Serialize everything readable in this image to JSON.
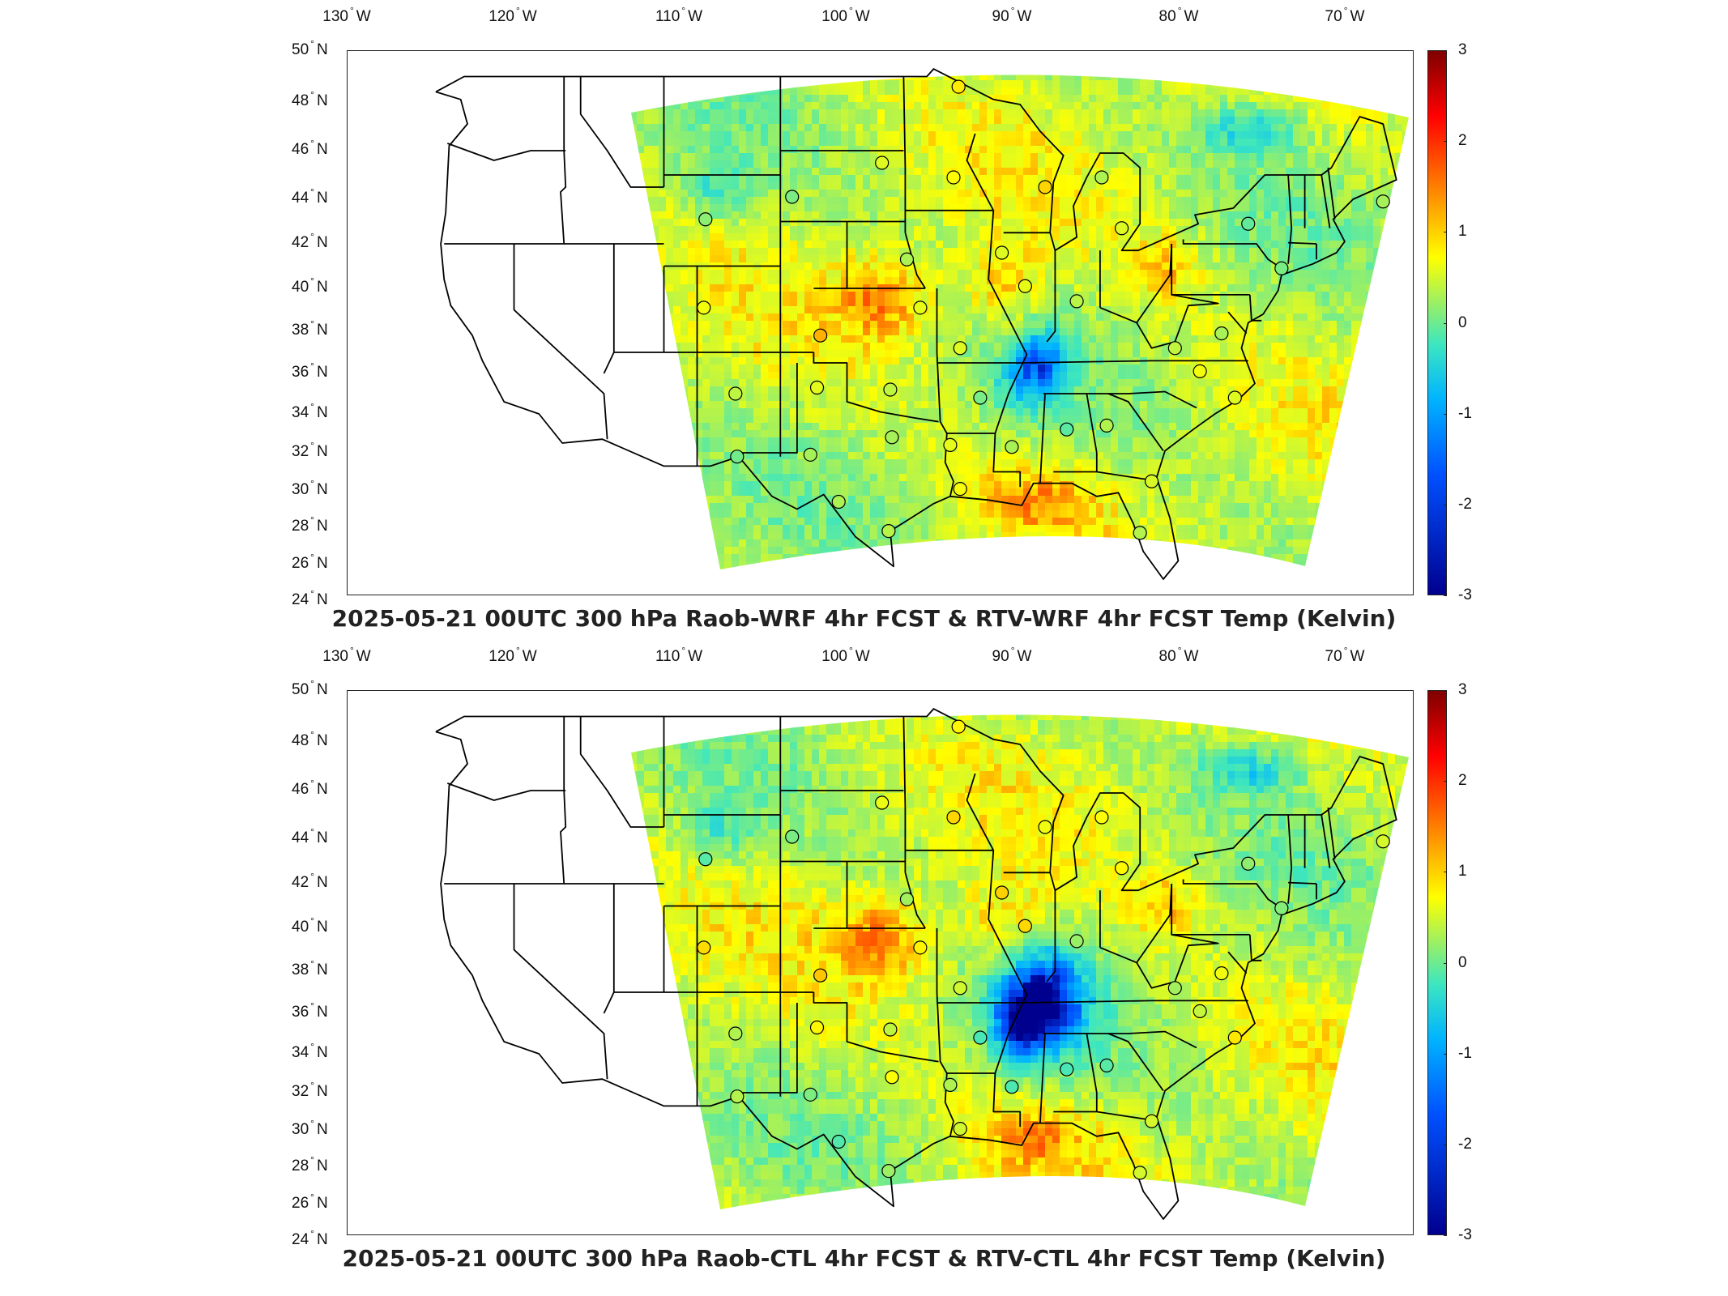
{
  "colors": {
    "frame": "#222222",
    "boundary": "#000000",
    "background": "#ffffff"
  },
  "longitude_ticks": [
    {
      "deg": "130",
      "hem": "W"
    },
    {
      "deg": "120",
      "hem": "W"
    },
    {
      "deg": "110",
      "hem": "W"
    },
    {
      "deg": "100",
      "hem": "W"
    },
    {
      "deg": "90",
      "hem": "W"
    },
    {
      "deg": "80",
      "hem": "W"
    },
    {
      "deg": "70",
      "hem": "W"
    }
  ],
  "latitude_ticks": [
    {
      "deg": "50",
      "hem": "N"
    },
    {
      "deg": "48",
      "hem": "N"
    },
    {
      "deg": "46",
      "hem": "N"
    },
    {
      "deg": "44",
      "hem": "N"
    },
    {
      "deg": "42",
      "hem": "N"
    },
    {
      "deg": "40",
      "hem": "N"
    },
    {
      "deg": "38",
      "hem": "N"
    },
    {
      "deg": "36",
      "hem": "N"
    },
    {
      "deg": "34",
      "hem": "N"
    },
    {
      "deg": "32",
      "hem": "N"
    },
    {
      "deg": "30",
      "hem": "N"
    },
    {
      "deg": "28",
      "hem": "N"
    },
    {
      "deg": "26",
      "hem": "N"
    },
    {
      "deg": "24",
      "hem": "N"
    }
  ],
  "colorbar": {
    "ticks": [
      "3",
      "2",
      "1",
      "0",
      "-1",
      "-2",
      "-3"
    ],
    "min": -3,
    "max": 3,
    "colormap": [
      "#00008f",
      "#0050ff",
      "#00b4ff",
      "#3ce6c0",
      "#9ff060",
      "#ffff00",
      "#ff7f00",
      "#ff0000",
      "#7f0000"
    ]
  },
  "panels": [
    {
      "title": "2025-05-21 00UTC 300 hPa Raob-WRF 4hr FCST & RTV-WRF 4hr FCST Temp (Kelvin)",
      "stations": [
        {
          "lon": -93.3,
          "lat": 48.6
        },
        {
          "lon": -97.9,
          "lat": 45.5
        },
        {
          "lon": -93.6,
          "lat": 44.9
        },
        {
          "lon": -103.3,
          "lat": 44.1
        },
        {
          "lon": -88.1,
          "lat": 44.5
        },
        {
          "lon": -84.7,
          "lat": 44.9
        },
        {
          "lon": -108.5,
          "lat": 43.1
        },
        {
          "lon": -83.5,
          "lat": 42.7
        },
        {
          "lon": -75.9,
          "lat": 42.9
        },
        {
          "lon": -67.8,
          "lat": 43.9
        },
        {
          "lon": -96.4,
          "lat": 41.3
        },
        {
          "lon": -90.7,
          "lat": 41.6
        },
        {
          "lon": -89.3,
          "lat": 40.1
        },
        {
          "lon": -86.2,
          "lat": 39.4
        },
        {
          "lon": -73.9,
          "lat": 40.9
        },
        {
          "lon": -108.6,
          "lat": 39.1
        },
        {
          "lon": -101.6,
          "lat": 37.8
        },
        {
          "lon": -95.6,
          "lat": 39.1
        },
        {
          "lon": -93.2,
          "lat": 37.2
        },
        {
          "lon": -77.5,
          "lat": 37.9
        },
        {
          "lon": -80.3,
          "lat": 37.2
        },
        {
          "lon": -78.8,
          "lat": 36.1
        },
        {
          "lon": -106.7,
          "lat": 35.0
        },
        {
          "lon": -101.8,
          "lat": 35.3
        },
        {
          "lon": -97.4,
          "lat": 35.2
        },
        {
          "lon": -92.0,
          "lat": 34.8
        },
        {
          "lon": -86.8,
          "lat": 33.2
        },
        {
          "lon": -84.4,
          "lat": 33.4
        },
        {
          "lon": -76.7,
          "lat": 34.8
        },
        {
          "lon": -97.3,
          "lat": 32.8
        },
        {
          "lon": -93.8,
          "lat": 32.4
        },
        {
          "lon": -90.1,
          "lat": 32.3
        },
        {
          "lon": -106.6,
          "lat": 31.8
        },
        {
          "lon": -102.2,
          "lat": 31.9
        },
        {
          "lon": -100.5,
          "lat": 29.4
        },
        {
          "lon": -93.2,
          "lat": 30.1
        },
        {
          "lon": -81.7,
          "lat": 30.5
        },
        {
          "lon": -97.5,
          "lat": 27.8
        },
        {
          "lon": -82.4,
          "lat": 27.7
        }
      ]
    },
    {
      "title": "2025-05-21 00UTC 300 hPa Raob-CTL 4hr FCST & RTV-CTL 4hr FCST Temp (Kelvin)",
      "stations": [
        {
          "lon": -93.3,
          "lat": 48.6
        },
        {
          "lon": -97.9,
          "lat": 45.5
        },
        {
          "lon": -93.6,
          "lat": 44.9
        },
        {
          "lon": -103.3,
          "lat": 44.1
        },
        {
          "lon": -88.1,
          "lat": 44.5
        },
        {
          "lon": -84.7,
          "lat": 44.9
        },
        {
          "lon": -108.5,
          "lat": 43.1
        },
        {
          "lon": -83.5,
          "lat": 42.7
        },
        {
          "lon": -75.9,
          "lat": 42.9
        },
        {
          "lon": -67.8,
          "lat": 43.9
        },
        {
          "lon": -96.4,
          "lat": 41.3
        },
        {
          "lon": -90.7,
          "lat": 41.6
        },
        {
          "lon": -89.3,
          "lat": 40.1
        },
        {
          "lon": -86.2,
          "lat": 39.4
        },
        {
          "lon": -73.9,
          "lat": 40.9
        },
        {
          "lon": -108.6,
          "lat": 39.1
        },
        {
          "lon": -101.6,
          "lat": 37.8
        },
        {
          "lon": -95.6,
          "lat": 39.1
        },
        {
          "lon": -93.2,
          "lat": 37.2
        },
        {
          "lon": -77.5,
          "lat": 37.9
        },
        {
          "lon": -80.3,
          "lat": 37.2
        },
        {
          "lon": -78.8,
          "lat": 36.1
        },
        {
          "lon": -106.7,
          "lat": 35.0
        },
        {
          "lon": -101.8,
          "lat": 35.3
        },
        {
          "lon": -97.4,
          "lat": 35.2
        },
        {
          "lon": -92.0,
          "lat": 34.8
        },
        {
          "lon": -86.8,
          "lat": 33.2
        },
        {
          "lon": -84.4,
          "lat": 33.4
        },
        {
          "lon": -76.7,
          "lat": 34.8
        },
        {
          "lon": -97.3,
          "lat": 32.8
        },
        {
          "lon": -93.8,
          "lat": 32.4
        },
        {
          "lon": -90.1,
          "lat": 32.3
        },
        {
          "lon": -106.6,
          "lat": 31.8
        },
        {
          "lon": -102.2,
          "lat": 31.9
        },
        {
          "lon": -100.5,
          "lat": 29.4
        },
        {
          "lon": -93.2,
          "lat": 30.1
        },
        {
          "lon": -81.7,
          "lat": 30.5
        },
        {
          "lon": -97.5,
          "lat": 27.8
        },
        {
          "lon": -82.4,
          "lat": 27.7
        }
      ]
    }
  ]
}
